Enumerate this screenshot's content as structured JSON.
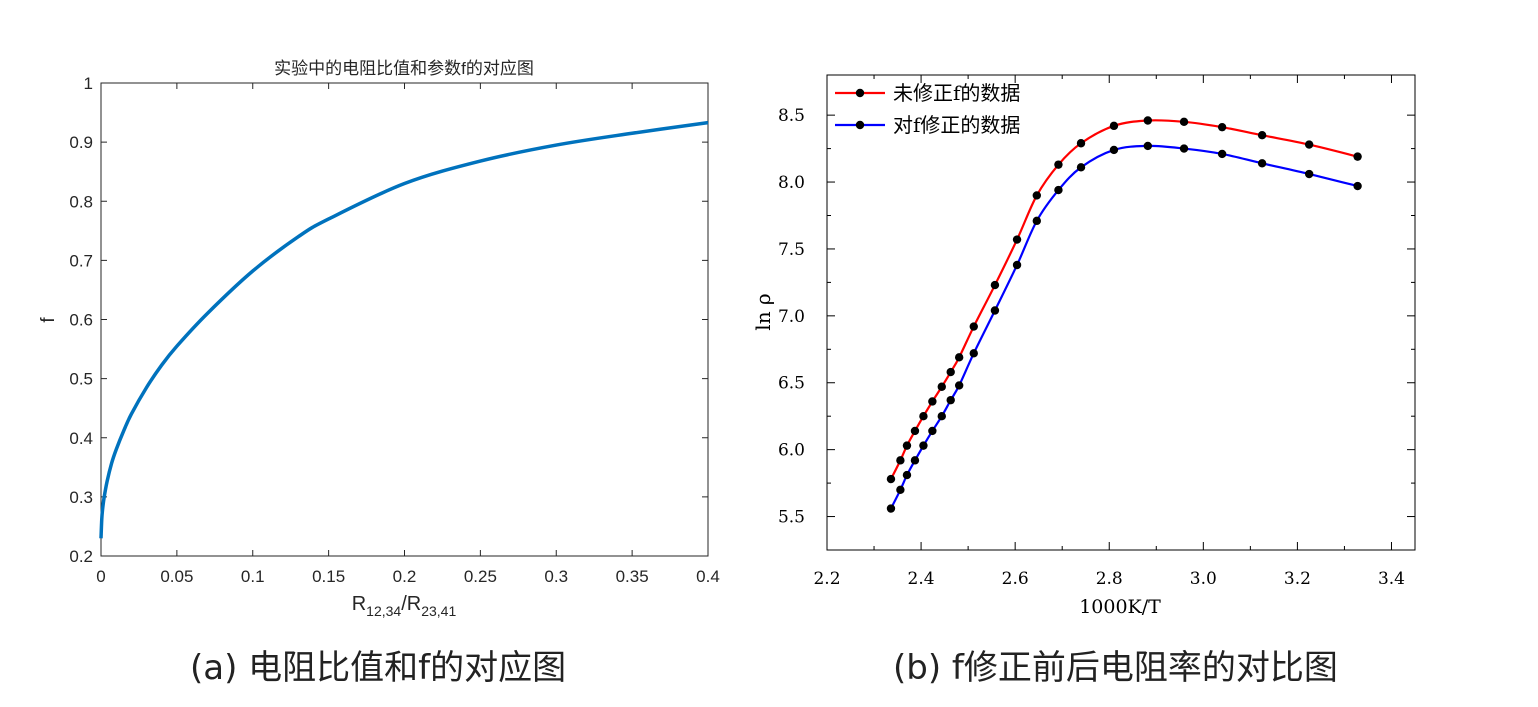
{
  "captions": {
    "a": "(a) 电阻比值和f的对应图",
    "b": "(b) f修正前后电阻率的对比图"
  },
  "colors": {
    "curve_a": "#0072BD",
    "series_red": "#ff0000",
    "series_blue": "#0000ff",
    "markers": "#000000"
  },
  "chart_data": [
    {
      "type": "line",
      "title": "实验中的电阻比值和参数f的对应图",
      "xlabel_main": "R",
      "xlabel_sub1": "12,34",
      "xlabel_sep": "/R",
      "xlabel_sub2": "23,41",
      "ylabel": "f",
      "xlim": [
        0,
        0.4
      ],
      "ylim": [
        0.2,
        1.0
      ],
      "xticks": [
        "0",
        "0.05",
        "0.1",
        "0.15",
        "0.2",
        "0.25",
        "0.3",
        "0.35",
        "0.4"
      ],
      "yticks": [
        "0.2",
        "0.3",
        "0.4",
        "0.5",
        "0.6",
        "0.7",
        "0.8",
        "0.9",
        "1"
      ],
      "x": [
        0,
        0.0005,
        0.001,
        0.002,
        0.004,
        0.007,
        0.01,
        0.015,
        0.02,
        0.03,
        0.04,
        0.05,
        0.07,
        0.1,
        0.13,
        0.15,
        0.2,
        0.25,
        0.3,
        0.35,
        0.4
      ],
      "y": [
        0.23,
        0.262,
        0.278,
        0.298,
        0.326,
        0.357,
        0.38,
        0.412,
        0.44,
        0.485,
        0.523,
        0.555,
        0.61,
        0.682,
        0.74,
        0.77,
        0.83,
        0.868,
        0.895,
        0.915,
        0.933
      ],
      "grid": false
    },
    {
      "type": "line",
      "title": "",
      "xlabel": "1000K/T",
      "ylabel": "ln ρ",
      "xlim": [
        2.2,
        3.45
      ],
      "ylim": [
        5.25,
        8.8
      ],
      "xticks": [
        "2.2",
        "2.4",
        "2.6",
        "2.8",
        "3.0",
        "3.2",
        "3.4"
      ],
      "yticks": [
        "5.5",
        "6.0",
        "6.5",
        "7.0",
        "7.5",
        "8.0",
        "8.5"
      ],
      "legend": "top-left",
      "grid": false,
      "series": [
        {
          "name": "未修正f的数据",
          "x": [
            2.336,
            2.356,
            2.37,
            2.387,
            2.405,
            2.424,
            2.444,
            2.463,
            2.481,
            2.512,
            2.557,
            2.604,
            2.646,
            2.692,
            2.74,
            2.81,
            2.882,
            2.959,
            3.04,
            3.125,
            3.225,
            3.328
          ],
          "y": [
            5.78,
            5.92,
            6.03,
            6.14,
            6.25,
            6.36,
            6.47,
            6.58,
            6.69,
            6.92,
            7.23,
            7.57,
            7.9,
            8.13,
            8.29,
            8.42,
            8.46,
            8.45,
            8.41,
            8.35,
            8.28,
            8.19
          ]
        },
        {
          "name": "对f修正的数据",
          "x": [
            2.336,
            2.356,
            2.37,
            2.387,
            2.405,
            2.424,
            2.444,
            2.463,
            2.481,
            2.512,
            2.557,
            2.604,
            2.646,
            2.692,
            2.74,
            2.81,
            2.882,
            2.959,
            3.04,
            3.125,
            3.225,
            3.328
          ],
          "y": [
            5.56,
            5.7,
            5.81,
            5.92,
            6.03,
            6.14,
            6.25,
            6.37,
            6.48,
            6.72,
            7.04,
            7.38,
            7.71,
            7.94,
            8.11,
            8.24,
            8.27,
            8.25,
            8.21,
            8.14,
            8.06,
            7.97
          ]
        }
      ]
    }
  ]
}
